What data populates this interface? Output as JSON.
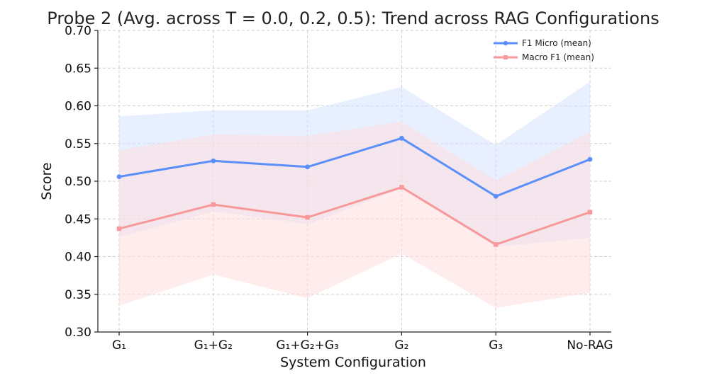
{
  "chart_data": {
    "type": "line",
    "title": "Probe 2 (Avg. across T = 0.0, 0.2, 0.5): Trend across RAG Configurations",
    "xlabel": "System Configuration",
    "ylabel": "Score",
    "categories": [
      "G₁",
      "G₁+G₂",
      "G₁+G₂+G₃",
      "G₂",
      "G₃",
      "No-RAG"
    ],
    "ylim": [
      0.3,
      0.7
    ],
    "yticks": [
      "0.30",
      "0.35",
      "0.40",
      "0.45",
      "0.50",
      "0.55",
      "0.60",
      "0.65",
      "0.70"
    ],
    "grid": true,
    "legend_position": "top-right",
    "series": [
      {
        "name": "F1 Micro (mean)",
        "color": "#5b8ff9",
        "marker": "circle",
        "values": [
          0.506,
          0.527,
          0.519,
          0.557,
          0.48,
          0.529
        ],
        "band_upper": [
          0.586,
          0.594,
          0.594,
          0.625,
          0.548,
          0.632
        ],
        "band_lower": [
          0.426,
          0.46,
          0.443,
          0.49,
          0.413,
          0.425
        ],
        "band_color": "#d6e2ff"
      },
      {
        "name": "Macro F1 (mean)",
        "color": "#f7999a",
        "marker": "square",
        "values": [
          0.437,
          0.469,
          0.452,
          0.492,
          0.416,
          0.459
        ],
        "band_upper": [
          0.541,
          0.562,
          0.56,
          0.579,
          0.501,
          0.565
        ],
        "band_lower": [
          0.335,
          0.376,
          0.345,
          0.404,
          0.332,
          0.352
        ],
        "band_color": "#ffdcdc"
      }
    ]
  }
}
